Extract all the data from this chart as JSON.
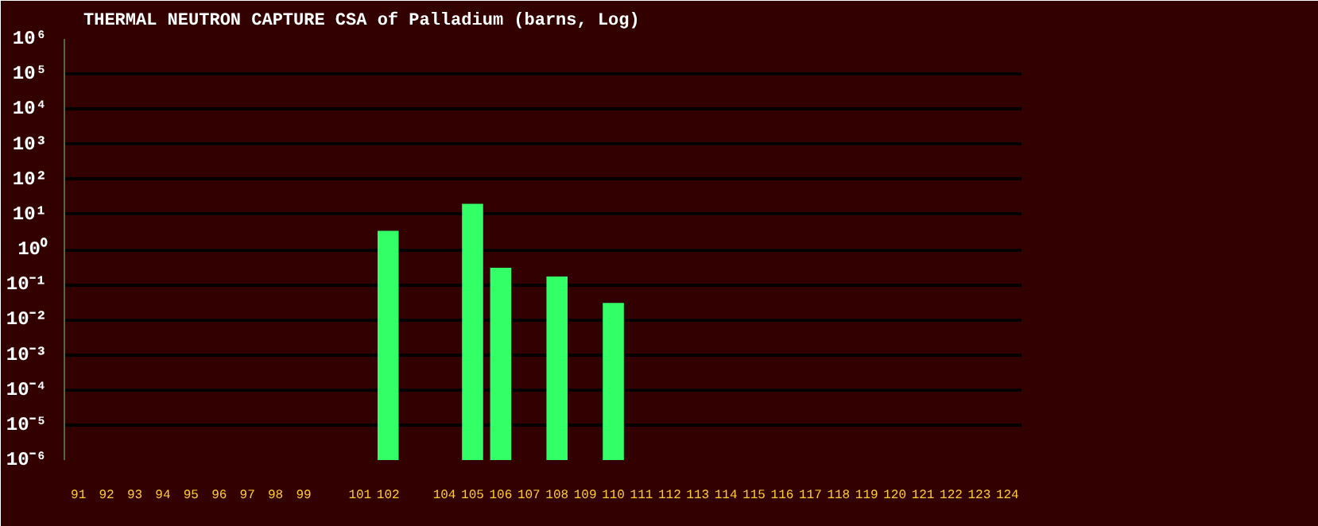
{
  "chart_data": {
    "type": "bar",
    "title": "THERMAL NEUTRON CAPTURE CSA of Palladium (barns, Log)",
    "categories": [
      "91",
      "92",
      "93",
      "94",
      "95",
      "96",
      "97",
      "98",
      "99",
      null,
      "101",
      "102",
      null,
      "104",
      "105",
      "106",
      "107",
      "108",
      "109",
      "110",
      "111",
      "112",
      "113",
      "114",
      "115",
      "116",
      "117",
      "118",
      "119",
      "120",
      "121",
      "122",
      "123",
      "124"
    ],
    "values": [
      null,
      null,
      null,
      null,
      null,
      null,
      null,
      null,
      null,
      null,
      null,
      3.4,
      null,
      null,
      20,
      0.3,
      null,
      0.17,
      null,
      0.03,
      null,
      null,
      null,
      null,
      null,
      null,
      null,
      null,
      null,
      null,
      null,
      null,
      null,
      null
    ],
    "color": "#33ff66",
    "log": true,
    "grid": "y",
    "ylim": [
      1e-06,
      1000000
    ],
    "yticks": [
      {
        "value": 1e-06,
        "label": "10⁻⁶"
      },
      {
        "value": 1e-05,
        "label": "10⁻⁵"
      },
      {
        "value": 0.0001,
        "label": "10⁻⁴"
      },
      {
        "value": 0.001,
        "label": "10⁻³"
      },
      {
        "value": 0.01,
        "label": "10⁻²"
      },
      {
        "value": 0.1,
        "label": "10⁻¹"
      },
      {
        "value": 1,
        "label": "10⁰"
      },
      {
        "value": 10,
        "label": "10¹"
      },
      {
        "value": 100,
        "label": "10²"
      },
      {
        "value": 1000,
        "label": "10³"
      },
      {
        "value": 10000,
        "label": "10⁴"
      },
      {
        "value": 100000,
        "label": "10⁵"
      },
      {
        "value": 1000000,
        "label": "10⁶"
      }
    ]
  }
}
